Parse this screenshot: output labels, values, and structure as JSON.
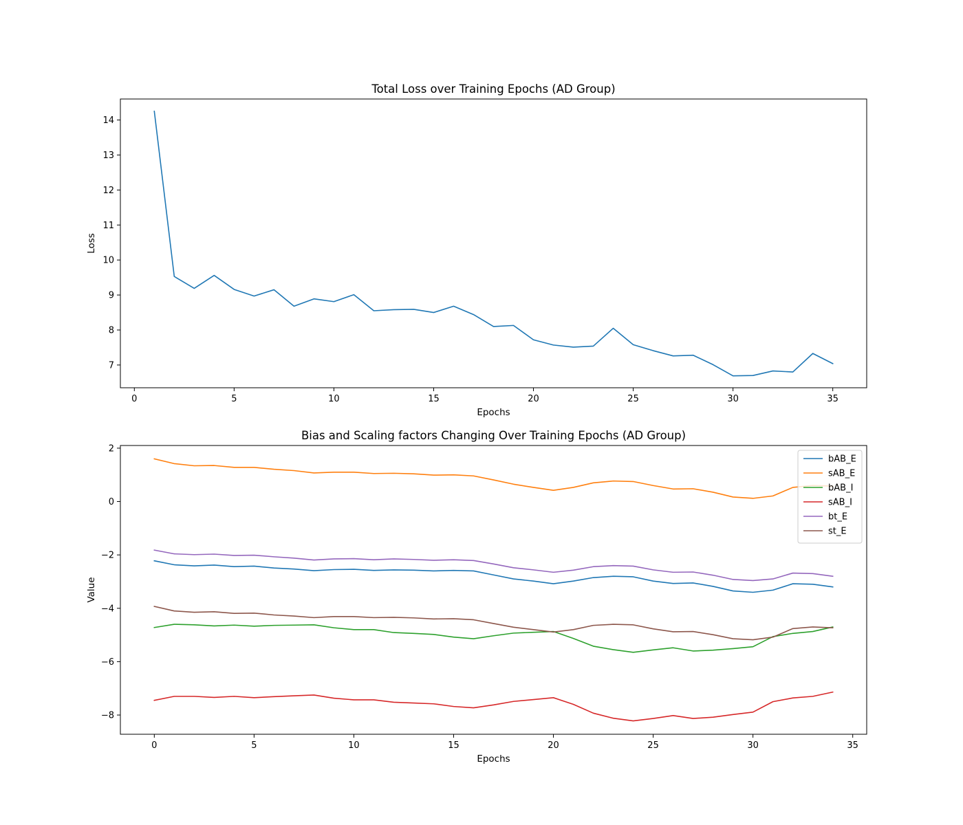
{
  "chart_data": [
    {
      "type": "line",
      "title": "Total Loss over Training Epochs (AD Group)",
      "xlabel": "Epochs",
      "ylabel": "Loss",
      "xlim": [
        -0.7,
        36.7
      ],
      "ylim": [
        6.35,
        14.6
      ],
      "xticks": [
        0,
        5,
        10,
        15,
        20,
        25,
        30,
        35
      ],
      "yticks": [
        7,
        8,
        9,
        10,
        11,
        12,
        13,
        14
      ],
      "grid": false,
      "legend": null,
      "x": [
        1,
        2,
        3,
        4,
        5,
        6,
        7,
        8,
        9,
        10,
        11,
        12,
        13,
        14,
        15,
        16,
        17,
        18,
        19,
        20,
        21,
        22,
        23,
        24,
        25,
        26,
        27,
        28,
        29,
        30,
        31,
        32,
        33,
        34,
        35
      ],
      "series": [
        {
          "color": "#1f77b4",
          "values": [
            14.25,
            9.53,
            9.19,
            9.56,
            9.16,
            8.97,
            9.15,
            8.68,
            8.89,
            8.81,
            9.01,
            8.55,
            8.58,
            8.59,
            8.5,
            8.68,
            8.44,
            8.1,
            8.13,
            7.72,
            7.57,
            7.51,
            7.54,
            8.05,
            7.58,
            7.41,
            7.26,
            7.28,
            7.01,
            6.69,
            6.7,
            6.83,
            6.8,
            7.33,
            7.04
          ]
        }
      ]
    },
    {
      "type": "line",
      "title": "Bias and Scaling factors Changing Over Training Epochs (AD Group)",
      "xlabel": "Epochs",
      "ylabel": "Value",
      "xlim": [
        -1.7,
        35.7
      ],
      "ylim": [
        -8.72,
        2.1
      ],
      "xticks": [
        0,
        5,
        10,
        15,
        20,
        25,
        30,
        35
      ],
      "yticks": [
        -8,
        -6,
        -4,
        -2,
        0,
        2
      ],
      "grid": false,
      "legend": "top-right",
      "x": [
        0,
        1,
        2,
        3,
        4,
        5,
        6,
        7,
        8,
        9,
        10,
        11,
        12,
        13,
        14,
        15,
        16,
        17,
        18,
        19,
        20,
        21,
        22,
        23,
        24,
        25,
        26,
        27,
        28,
        29,
        30,
        31,
        32,
        33,
        34
      ],
      "series": [
        {
          "name": "bAB_E",
          "color": "#1f77b4",
          "values": [
            -2.22,
            -2.37,
            -2.41,
            -2.38,
            -2.44,
            -2.42,
            -2.49,
            -2.53,
            -2.59,
            -2.55,
            -2.54,
            -2.58,
            -2.56,
            -2.57,
            -2.6,
            -2.58,
            -2.6,
            -2.75,
            -2.9,
            -2.98,
            -3.08,
            -2.98,
            -2.85,
            -2.8,
            -2.82,
            -2.98,
            -3.07,
            -3.05,
            -3.18,
            -3.35,
            -3.4,
            -3.32,
            -3.08,
            -3.1,
            -3.2
          ]
        },
        {
          "name": "sAB_E",
          "color": "#ff7f0e",
          "values": [
            1.6,
            1.42,
            1.34,
            1.35,
            1.28,
            1.28,
            1.21,
            1.16,
            1.07,
            1.1,
            1.1,
            1.05,
            1.06,
            1.04,
            0.99,
            1.0,
            0.96,
            0.81,
            0.65,
            0.53,
            0.42,
            0.53,
            0.7,
            0.77,
            0.75,
            0.6,
            0.47,
            0.48,
            0.35,
            0.17,
            0.12,
            0.21,
            0.53,
            0.6,
            0.58
          ]
        },
        {
          "name": "bAB_I",
          "color": "#2ca02c",
          "values": [
            -4.72,
            -4.6,
            -4.62,
            -4.66,
            -4.63,
            -4.67,
            -4.64,
            -4.63,
            -4.62,
            -4.73,
            -4.8,
            -4.8,
            -4.91,
            -4.94,
            -4.98,
            -5.08,
            -5.14,
            -5.03,
            -4.93,
            -4.9,
            -4.87,
            -5.13,
            -5.42,
            -5.55,
            -5.65,
            -5.56,
            -5.48,
            -5.6,
            -5.57,
            -5.51,
            -5.44,
            -5.06,
            -4.94,
            -4.87,
            -4.7
          ]
        },
        {
          "name": "sAB_I",
          "color": "#d62728",
          "values": [
            -7.45,
            -7.3,
            -7.3,
            -7.34,
            -7.3,
            -7.35,
            -7.31,
            -7.28,
            -7.25,
            -7.37,
            -7.43,
            -7.43,
            -7.52,
            -7.55,
            -7.58,
            -7.68,
            -7.73,
            -7.62,
            -7.49,
            -7.42,
            -7.35,
            -7.6,
            -7.93,
            -8.12,
            -8.22,
            -8.13,
            -8.02,
            -8.13,
            -8.08,
            -7.98,
            -7.89,
            -7.5,
            -7.36,
            -7.3,
            -7.14
          ]
        },
        {
          "name": "bt_E",
          "color": "#9467bd",
          "values": [
            -1.82,
            -1.96,
            -1.99,
            -1.97,
            -2.02,
            -2.01,
            -2.07,
            -2.12,
            -2.19,
            -2.15,
            -2.14,
            -2.18,
            -2.15,
            -2.17,
            -2.2,
            -2.18,
            -2.21,
            -2.34,
            -2.48,
            -2.56,
            -2.65,
            -2.57,
            -2.44,
            -2.4,
            -2.42,
            -2.56,
            -2.65,
            -2.64,
            -2.76,
            -2.92,
            -2.96,
            -2.9,
            -2.68,
            -2.7,
            -2.8
          ]
        },
        {
          "name": "st_E",
          "color": "#8c564b",
          "values": [
            -3.93,
            -4.1,
            -4.15,
            -4.13,
            -4.19,
            -4.18,
            -4.25,
            -4.29,
            -4.35,
            -4.31,
            -4.31,
            -4.35,
            -4.34,
            -4.36,
            -4.4,
            -4.39,
            -4.43,
            -4.57,
            -4.71,
            -4.8,
            -4.89,
            -4.8,
            -4.64,
            -4.6,
            -4.62,
            -4.77,
            -4.88,
            -4.87,
            -4.99,
            -5.14,
            -5.18,
            -5.08,
            -4.76,
            -4.7,
            -4.73
          ]
        }
      ]
    }
  ]
}
